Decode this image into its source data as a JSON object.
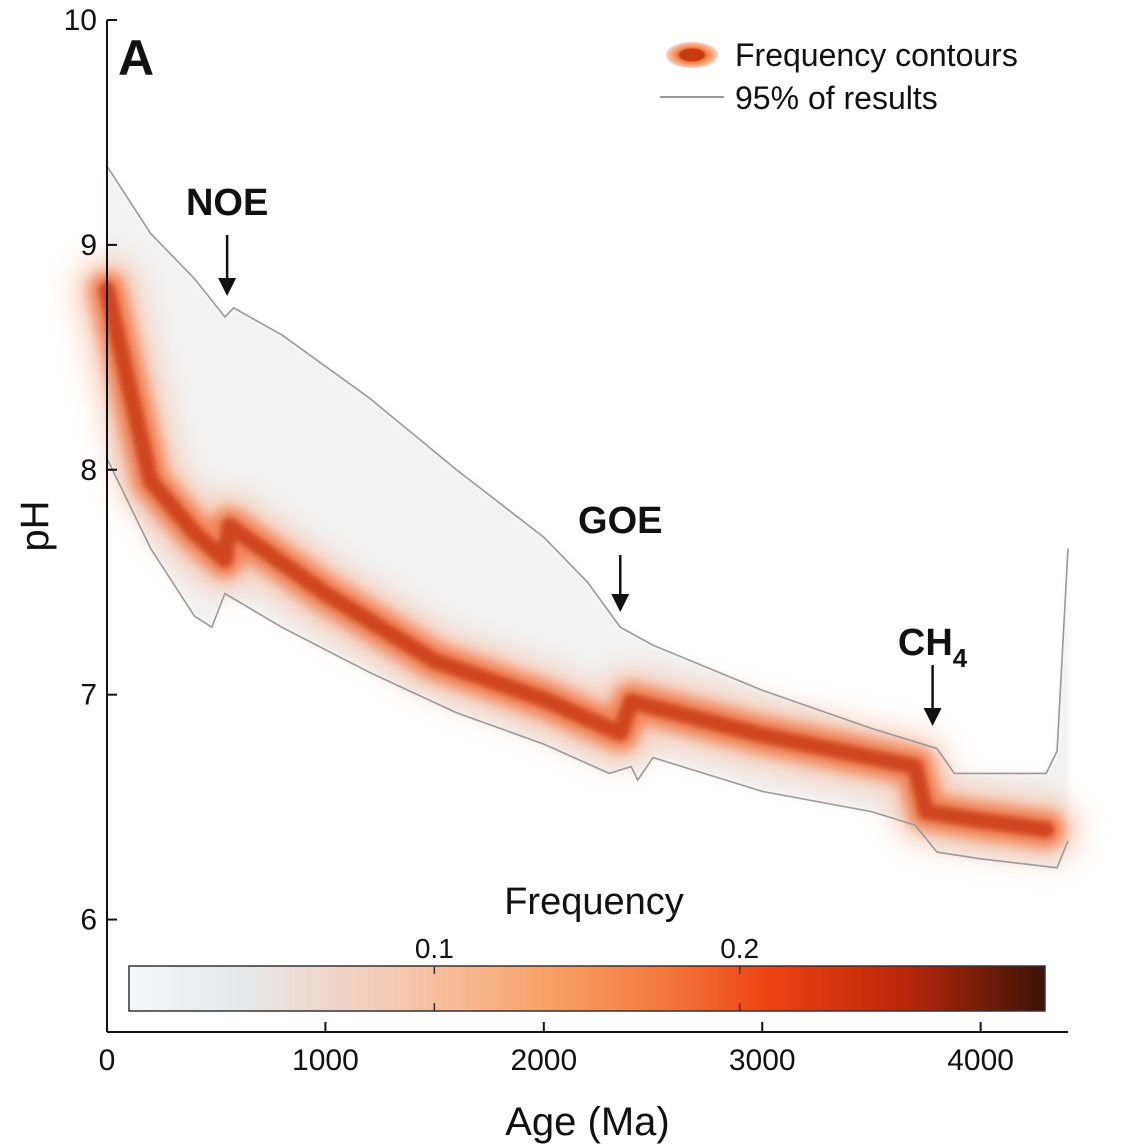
{
  "chart_data": {
    "type": "area",
    "panel_label": "A",
    "xlabel": "Age (Ma)",
    "ylabel": "pH",
    "xlim": [
      0,
      4400
    ],
    "ylim": [
      5.5,
      10
    ],
    "x_ticks": [
      0,
      1000,
      2000,
      3000,
      4000
    ],
    "y_ticks": [
      6,
      7,
      8,
      9,
      10
    ],
    "legend": {
      "placement": "top-right",
      "entries": [
        {
          "label": "Frequency contours",
          "kind": "contour"
        },
        {
          "label": "95% of results",
          "kind": "line"
        }
      ]
    },
    "bounds_95": {
      "upper": [
        [
          0,
          9.35
        ],
        [
          200,
          9.05
        ],
        [
          400,
          8.85
        ],
        [
          540,
          8.68
        ],
        [
          580,
          8.72
        ],
        [
          800,
          8.6
        ],
        [
          1200,
          8.32
        ],
        [
          1600,
          8.0
        ],
        [
          2000,
          7.7
        ],
        [
          2200,
          7.5
        ],
        [
          2350,
          7.3
        ],
        [
          2500,
          7.22
        ],
        [
          3000,
          7.02
        ],
        [
          3500,
          6.85
        ],
        [
          3800,
          6.76
        ],
        [
          3880,
          6.65
        ],
        [
          4300,
          6.65
        ],
        [
          4350,
          6.75
        ],
        [
          4400,
          7.65
        ]
      ],
      "lower": [
        [
          0,
          8.05
        ],
        [
          200,
          7.65
        ],
        [
          400,
          7.35
        ],
        [
          480,
          7.3
        ],
        [
          540,
          7.45
        ],
        [
          800,
          7.3
        ],
        [
          1200,
          7.1
        ],
        [
          1600,
          6.92
        ],
        [
          2000,
          6.78
        ],
        [
          2300,
          6.65
        ],
        [
          2400,
          6.68
        ],
        [
          2430,
          6.62
        ],
        [
          2500,
          6.72
        ],
        [
          3000,
          6.57
        ],
        [
          3500,
          6.48
        ],
        [
          3700,
          6.42
        ],
        [
          3800,
          6.3
        ],
        [
          4000,
          6.27
        ],
        [
          4350,
          6.23
        ],
        [
          4400,
          6.35
        ]
      ]
    },
    "frequency_ridge": [
      [
        0,
        8.8
      ],
      [
        200,
        7.95
      ],
      [
        400,
        7.72
      ],
      [
        540,
        7.6
      ],
      [
        560,
        7.75
      ],
      [
        1000,
        7.45
      ],
      [
        1500,
        7.15
      ],
      [
        2000,
        6.98
      ],
      [
        2300,
        6.85
      ],
      [
        2350,
        6.83
      ],
      [
        2400,
        6.97
      ],
      [
        3000,
        6.82
      ],
      [
        3500,
        6.72
      ],
      [
        3700,
        6.68
      ],
      [
        3750,
        6.48
      ],
      [
        4000,
        6.44
      ],
      [
        4300,
        6.4
      ]
    ],
    "annotations": [
      {
        "label": "NOE",
        "x": 550,
        "y": 8.72
      },
      {
        "label": "GOE",
        "x": 2350,
        "y": 7.33
      },
      {
        "label": "CH",
        "sub": "4",
        "x": 3780,
        "y": 6.8
      }
    ],
    "colorbar": {
      "title": "Frequency",
      "range": [
        0,
        0.3
      ],
      "ticks": [
        0.1,
        0.2
      ],
      "tick_labels": [
        "0.1",
        "0.2"
      ],
      "colors": [
        "#f4f6f7",
        "#e6e9eb",
        "#f7c7b0",
        "#f8a36a",
        "#f47a3e",
        "#ee4212",
        "#b9260a",
        "#3c1308"
      ]
    },
    "colors": {
      "band": "#f2f2f2",
      "bound_line": "#999999",
      "ridge_core": "#c93a12",
      "ridge_mid": "#ef6a35",
      "ridge_outer": "#f8b89a",
      "axis": "#111111"
    }
  }
}
